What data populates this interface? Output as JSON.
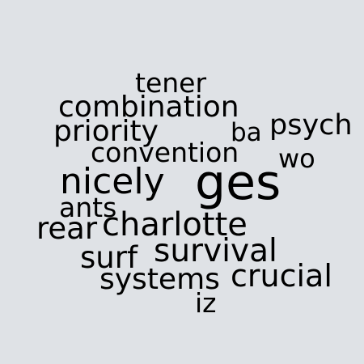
{
  "colors": {
    "background": "#dfe2e6",
    "text": "#000000"
  },
  "words": [
    "tener",
    "combination",
    "priority",
    "ba",
    "psych",
    "convention",
    "wo",
    "ges",
    "nicely",
    "ants",
    "rear",
    "charlotte",
    "survival",
    "surf",
    "crucial",
    "systems",
    "iz"
  ]
}
